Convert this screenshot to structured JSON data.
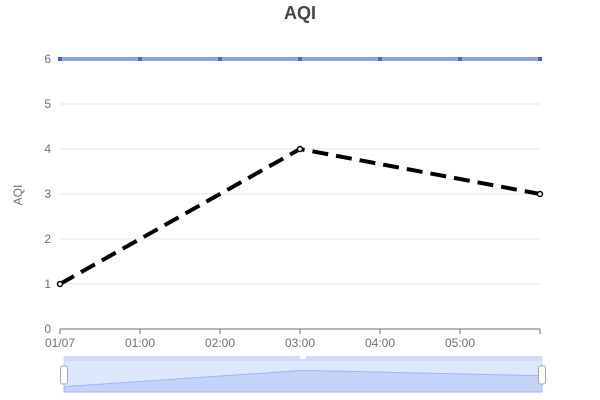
{
  "chart_data": {
    "type": "line",
    "title": "AQI",
    "xlabel": "",
    "ylabel": "AQI",
    "x_tick_labels": [
      "01/07",
      "01:00",
      "02:00",
      "03:00",
      "04:00",
      "05:00"
    ],
    "y_tick_labels": [
      "0",
      "1",
      "2",
      "3",
      "4",
      "5",
      "6"
    ],
    "ylim": [
      0,
      6
    ],
    "xlim_hours": [
      0,
      6
    ],
    "grid": true,
    "legend": false,
    "series": [
      {
        "color": "#000000",
        "line_style": "dashed",
        "points": [
          {
            "hour": 0,
            "value": 1
          },
          {
            "hour": 3,
            "value": 4
          },
          {
            "hour": 6,
            "value": 3
          }
        ]
      }
    ],
    "mark_line": {
      "value": 6,
      "color": "#8fa1e6"
    },
    "data_zoom": {
      "type": "slider",
      "start_percent": 0,
      "end_percent": 100,
      "fill_color": "#d2dcf8"
    }
  }
}
